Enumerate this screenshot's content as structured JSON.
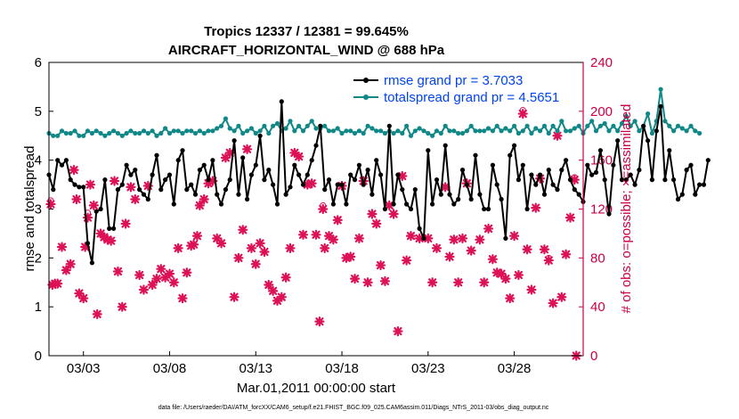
{
  "chart_data": {
    "type": "line",
    "title": "Tropics 12337 / 12381 = 99.645%",
    "subtitle": "AIRCRAFT_HORIZONTAL_WIND @ 688 hPa",
    "xlabel": "Mar.01,2011 00:00:00 start",
    "ylabel_left": "rmse and totalspread",
    "ylabel_right": "# of obs: o=possible; ×=assimilated",
    "footer": "data file: /Users/raeder/DAI/ATM_forcXX/CAM6_setup/f.e21.FHIST_BGC.f09_025.CAM6assim.011/Diags_NTrS_2011-03/obs_diag_output.nc",
    "xlim": [
      1,
      32
    ],
    "ylim_left": [
      0,
      6
    ],
    "ylim_right": [
      0,
      240
    ],
    "x_ticks": [
      3,
      8,
      13,
      18,
      23,
      28
    ],
    "x_tick_labels": [
      "03/03",
      "03/08",
      "03/13",
      "03/18",
      "03/23",
      "03/28"
    ],
    "y_ticks_left": [
      0,
      1,
      2,
      3,
      4,
      5,
      6
    ],
    "y_tick_labels_left": [
      "0",
      "1",
      "2",
      "3",
      "4",
      "5",
      "6"
    ],
    "y_ticks_right": [
      0,
      40,
      80,
      120,
      160,
      200,
      240
    ],
    "y_tick_labels_right": [
      "0",
      "40",
      "80",
      "120",
      "160",
      "200",
      "240"
    ],
    "legend_position": "top-right",
    "colors": {
      "rmse": "#000000",
      "spread": "#118888",
      "obs": "#dd1155",
      "right_axis": "#cc0044",
      "legend_text": "#0044ee"
    },
    "x_start": 1.0,
    "x_step": 0.25,
    "series": [
      {
        "name": "rmse grand pr = 3.7033",
        "values": [
          3.7,
          3.4,
          4.0,
          3.9,
          4.0,
          3.6,
          3.5,
          3.45,
          3.45,
          2.3,
          1.9,
          2.95,
          3.0,
          3.6,
          2.6,
          2.6,
          3.4,
          3.5,
          3.9,
          3.7,
          3.8,
          3.4,
          3.3,
          3.2,
          3.7,
          4.1,
          3.4,
          3.6,
          3.7,
          3.1,
          4.0,
          4.2,
          3.4,
          3.5,
          3.3,
          3.8,
          3.9,
          3.6,
          4.0,
          3.3,
          3.1,
          3.4,
          3.6,
          4.4,
          3.3,
          4.05,
          3.2,
          3.7,
          3.9,
          4.5,
          3.6,
          3.8,
          3.5,
          3.1,
          5.2,
          3.3,
          3.45,
          3.9,
          3.7,
          3.5,
          3.7,
          4.0,
          4.3,
          4.7,
          3.4,
          3.6,
          3.1,
          3.5,
          3.5,
          3.1,
          3.7,
          3.6,
          3.9,
          3.5,
          3.8,
          3.3,
          4.0,
          3.7,
          3.0,
          4.7,
          3.1,
          3.7,
          3.4,
          3.1,
          3.0,
          3.4,
          2.6,
          2.4,
          4.2,
          3.1,
          3.6,
          3.3,
          4.3,
          3.3,
          3.1,
          3.2,
          3.8,
          3.5,
          3.2,
          4.1,
          3.3,
          3.0,
          3.0,
          3.9,
          3.5,
          3.2,
          2.4,
          4.1,
          4.3,
          3.6,
          3.9,
          3.0,
          3.7,
          3.5,
          3.7,
          3.3,
          3.8,
          3.5,
          3.4,
          3.8,
          4.0,
          3.6,
          3.4,
          3.3,
          3.15,
          3.9,
          3.7,
          3.75,
          4.2,
          3.6,
          2.9,
          3.9,
          4.4,
          3.6,
          3.6,
          3.7,
          3.5,
          3.8,
          4.7,
          4.4,
          3.6,
          4.6,
          5.1,
          3.6,
          4.2,
          3.6,
          3.2,
          3.3,
          3.8,
          3.9,
          3.3,
          3.5,
          3.5,
          4.0
        ],
        "color": "#000000"
      },
      {
        "name": "totalspread grand pr = 4.5651",
        "values": [
          4.55,
          4.5,
          4.5,
          4.6,
          4.55,
          4.55,
          4.6,
          4.5,
          4.5,
          4.6,
          4.55,
          4.6,
          4.55,
          4.5,
          4.55,
          4.6,
          4.55,
          4.5,
          4.55,
          4.6,
          4.55,
          4.55,
          4.6,
          4.55,
          4.6,
          4.5,
          4.55,
          4.65,
          4.55,
          4.6,
          4.6,
          4.55,
          4.6,
          4.6,
          4.55,
          4.6,
          4.55,
          4.6,
          4.6,
          4.65,
          4.7,
          4.85,
          4.65,
          4.6,
          4.7,
          4.55,
          4.6,
          4.65,
          4.55,
          4.6,
          4.7,
          4.55,
          4.7,
          4.75,
          4.6,
          4.65,
          4.8,
          4.6,
          4.7,
          4.6,
          4.7,
          4.8,
          4.65,
          4.65,
          4.7,
          4.6,
          4.6,
          4.65,
          4.55,
          4.6,
          4.6,
          4.55,
          4.6,
          4.55,
          4.7,
          4.65,
          4.6,
          4.6,
          4.55,
          4.6,
          4.55,
          4.6,
          4.55,
          4.7,
          4.5,
          4.6,
          4.65,
          4.6,
          4.55,
          4.5,
          4.6,
          4.55,
          4.7,
          4.6,
          4.6,
          4.55,
          4.55,
          4.6,
          4.7,
          4.6,
          4.6,
          4.6,
          4.65,
          4.6,
          4.7,
          4.6,
          4.65,
          4.6,
          4.7,
          4.55,
          4.6,
          4.7,
          4.55,
          4.65,
          4.6,
          4.7,
          4.55,
          4.7,
          4.6,
          4.8,
          4.6,
          4.6,
          4.65,
          4.7,
          4.55,
          4.7,
          4.8,
          4.6,
          4.7,
          4.75,
          4.6,
          4.7,
          4.6,
          4.75,
          4.9,
          4.7,
          4.8,
          4.6,
          4.7,
          4.95,
          4.55,
          4.8,
          5.45,
          4.8,
          4.7,
          4.6,
          4.7,
          4.65,
          4.6,
          4.7,
          4.6,
          4.55
        ],
        "color": "#118888"
      }
    ],
    "obs_assimilated": [
      [
        1.1,
        124
      ],
      [
        1.2,
        58
      ],
      [
        1.35,
        59
      ],
      [
        1.5,
        59
      ],
      [
        1.75,
        89
      ],
      [
        2.0,
        70
      ],
      [
        2.25,
        75
      ],
      [
        2.45,
        152
      ],
      [
        2.6,
        128
      ],
      [
        2.75,
        51
      ],
      [
        3.0,
        47
      ],
      [
        3.1,
        89
      ],
      [
        3.25,
        113
      ],
      [
        3.4,
        140
      ],
      [
        3.6,
        123
      ],
      [
        3.8,
        34
      ],
      [
        4.0,
        100
      ],
      [
        4.2,
        97
      ],
      [
        4.4,
        95
      ],
      [
        4.6,
        94
      ],
      [
        4.8,
        143
      ],
      [
        5.0,
        69
      ],
      [
        5.25,
        40
      ],
      [
        5.45,
        108
      ],
      [
        5.75,
        138
      ],
      [
        6.0,
        128
      ],
      [
        6.25,
        66
      ],
      [
        6.5,
        54
      ],
      [
        6.75,
        139
      ],
      [
        7.0,
        58
      ],
      [
        7.25,
        63
      ],
      [
        7.5,
        71
      ],
      [
        7.75,
        64
      ],
      [
        8.0,
        67
      ],
      [
        8.25,
        60
      ],
      [
        8.5,
        88
      ],
      [
        8.75,
        47
      ],
      [
        9.0,
        68
      ],
      [
        9.25,
        90
      ],
      [
        9.4,
        91
      ],
      [
        9.6,
        98
      ],
      [
        9.75,
        123
      ],
      [
        10.0,
        128
      ],
      [
        10.25,
        141
      ],
      [
        10.5,
        143
      ],
      [
        10.75,
        96
      ],
      [
        11.0,
        92
      ],
      [
        11.25,
        162
      ],
      [
        11.5,
        166
      ],
      [
        11.75,
        48
      ],
      [
        12.0,
        80
      ],
      [
        12.25,
        103
      ],
      [
        12.5,
        169
      ],
      [
        12.75,
        88
      ],
      [
        13.0,
        75
      ],
      [
        13.25,
        92
      ],
      [
        13.5,
        85
      ],
      [
        13.75,
        58
      ],
      [
        14.0,
        53
      ],
      [
        14.25,
        45
      ],
      [
        14.5,
        48
      ],
      [
        14.75,
        64
      ],
      [
        15.0,
        88
      ],
      [
        15.25,
        166
      ],
      [
        15.5,
        163
      ],
      [
        15.75,
        99
      ],
      [
        16.0,
        140
      ],
      [
        16.25,
        141
      ],
      [
        16.5,
        99
      ],
      [
        16.7,
        28
      ],
      [
        16.9,
        120
      ],
      [
        17.0,
        88
      ],
      [
        17.25,
        98
      ],
      [
        17.5,
        95
      ],
      [
        17.75,
        111
      ],
      [
        18.0,
        139
      ],
      [
        18.25,
        80
      ],
      [
        18.5,
        81
      ],
      [
        18.75,
        63
      ],
      [
        19.0,
        96
      ],
      [
        19.25,
        143
      ],
      [
        19.5,
        60
      ],
      [
        19.75,
        116
      ],
      [
        20.0,
        108
      ],
      [
        20.25,
        74
      ],
      [
        20.5,
        61
      ],
      [
        20.75,
        123
      ],
      [
        21.0,
        116
      ],
      [
        21.25,
        20
      ],
      [
        21.5,
        147
      ],
      [
        21.75,
        78
      ],
      [
        22.0,
        98
      ],
      [
        22.5,
        96
      ],
      [
        23.0,
        96
      ],
      [
        23.25,
        60
      ],
      [
        23.5,
        88
      ],
      [
        24.0,
        138
      ],
      [
        24.25,
        81
      ],
      [
        24.5,
        95
      ],
      [
        24.75,
        60
      ],
      [
        25.0,
        96
      ],
      [
        25.25,
        141
      ],
      [
        25.5,
        86
      ],
      [
        26.0,
        95
      ],
      [
        26.25,
        60
      ],
      [
        26.5,
        104
      ],
      [
        26.75,
        79
      ],
      [
        27.0,
        68
      ],
      [
        27.25,
        67
      ],
      [
        27.5,
        63
      ],
      [
        27.75,
        47
      ],
      [
        28.0,
        98
      ],
      [
        28.25,
        66
      ],
      [
        28.5,
        198
      ],
      [
        28.75,
        87
      ],
      [
        29.0,
        54
      ],
      [
        29.25,
        121
      ],
      [
        29.5,
        145
      ],
      [
        29.75,
        87
      ],
      [
        30.0,
        78
      ],
      [
        30.25,
        43
      ],
      [
        30.5,
        180
      ],
      [
        30.75,
        48
      ],
      [
        31.0,
        83
      ],
      [
        31.25,
        113
      ],
      [
        31.5,
        144
      ],
      [
        31.6,
        0
      ]
    ],
    "obs_possible": [
      [
        1.1,
        127
      ],
      [
        3.25,
        117
      ],
      [
        16.9,
        123
      ],
      [
        28.5,
        201
      ],
      [
        30.0,
        80
      ],
      [
        31.5,
        146
      ]
    ]
  }
}
